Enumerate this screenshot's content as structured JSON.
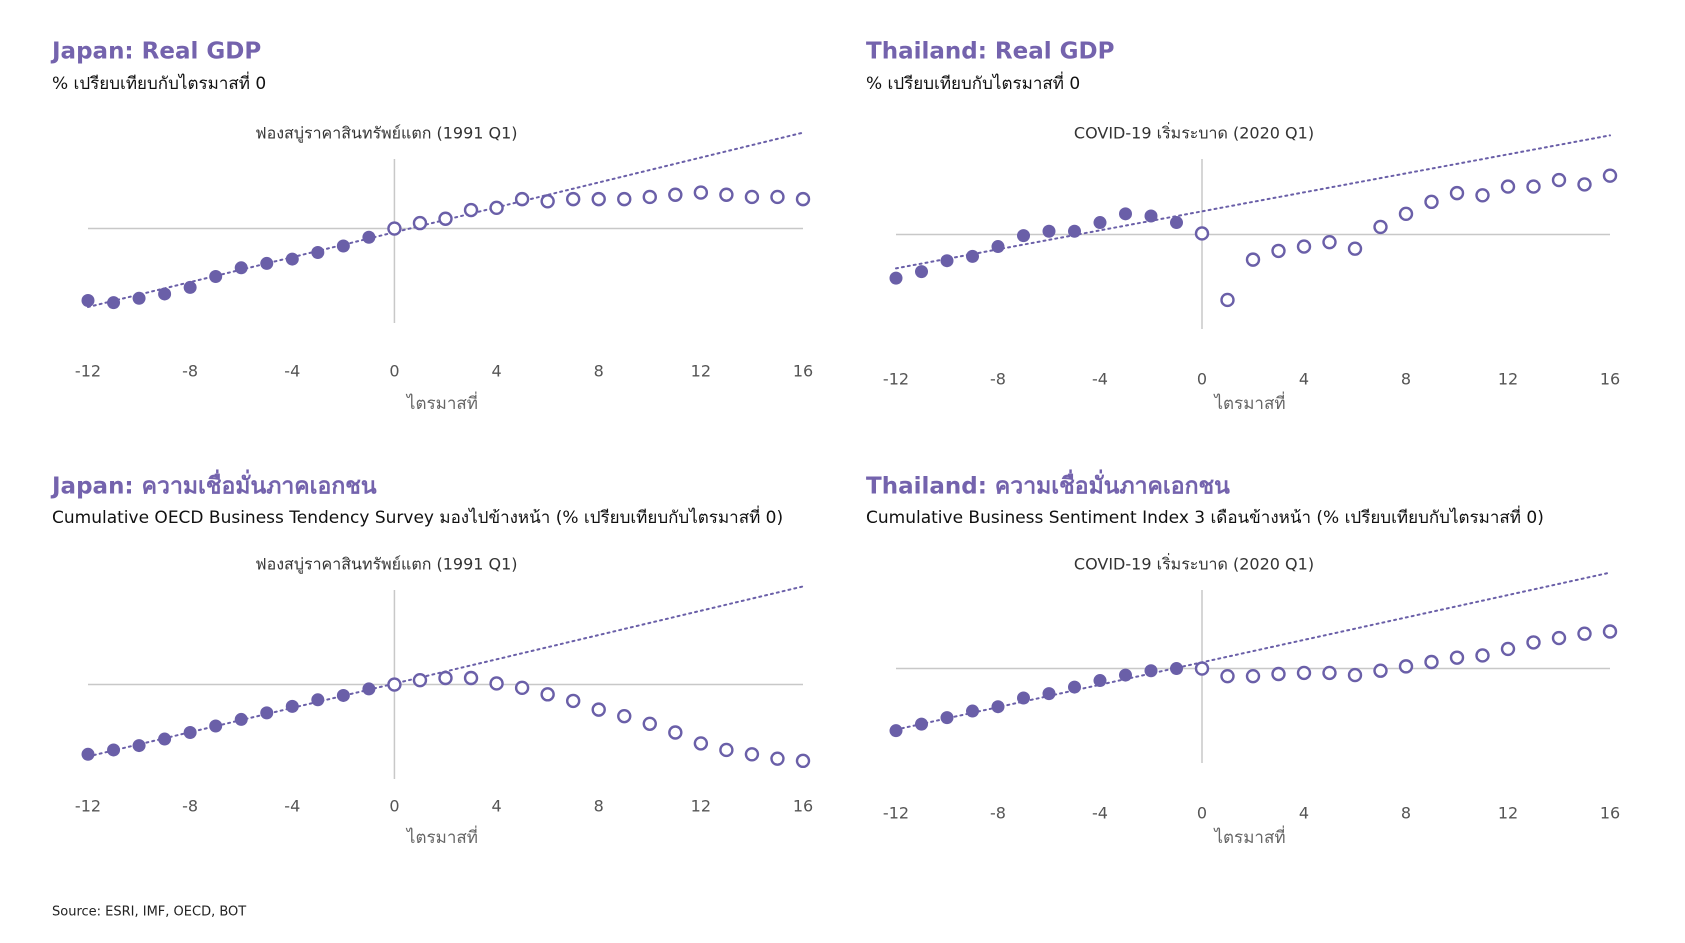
{
  "chart_data": [
    {
      "type": "scatter",
      "title": "Japan: Real GDP",
      "subtitle": "% เปรียบเทียบกับไตรมาสที่ 0",
      "annotation": "ฟองสบู่ราคาสินทรัพย์แตก (1991 Q1)",
      "x_label": "ไตรมาสที่",
      "xlim": [
        -12,
        16
      ],
      "xticks": [
        -12,
        -8,
        -4,
        0,
        4,
        8,
        12,
        16
      ],
      "ylim": [
        -10.5,
        9.5
      ],
      "series": [
        {
          "marker": "filled",
          "color": "#6a5fa8",
          "x": [
            -12,
            -11,
            -10,
            -9,
            -8,
            -7,
            -6,
            -5,
            -4,
            -3,
            -2,
            -1
          ],
          "values": [
            -6.6,
            -6.8,
            -6.4,
            -6.0,
            -5.4,
            -4.4,
            -3.6,
            -3.2,
            -2.8,
            -2.2,
            -1.6,
            -0.8
          ]
        },
        {
          "marker": "open",
          "color": "#6a5fa8",
          "x": [
            0,
            1,
            2,
            3,
            4,
            5,
            6,
            7,
            8,
            9,
            10,
            11,
            12,
            13,
            14,
            15,
            16
          ],
          "values": [
            0,
            0.5,
            0.9,
            1.7,
            1.9,
            2.7,
            2.5,
            2.7,
            2.7,
            2.7,
            2.9,
            3.1,
            3.3,
            3.1,
            2.9,
            2.9,
            2.7
          ]
        }
      ],
      "trend": {
        "color": "#6a5fa8",
        "x": [
          -12,
          16
        ],
        "values": [
          -7.2,
          8.8
        ]
      }
    },
    {
      "type": "scatter",
      "title": "Thailand: Real GDP",
      "subtitle": "% เปรียบเทียบกับไตรมาสที่ 0",
      "annotation": "COVID-19 เริ่มระบาด (2020 Q1)",
      "x_label": "ไตรมาสที่",
      "xlim": [
        -12,
        16
      ],
      "xticks": [
        -12,
        -8,
        -4,
        0,
        4,
        8,
        12,
        16
      ],
      "ylim": [
        -10.5,
        9.5
      ],
      "series": [
        {
          "marker": "filled",
          "color": "#6a5fa8",
          "x": [
            -12,
            -11,
            -10,
            -9,
            -8,
            -7,
            -6,
            -5,
            -4,
            -3,
            -2,
            -1
          ],
          "values": [
            -4.0,
            -3.4,
            -2.4,
            -2.0,
            -1.1,
            -0.1,
            0.3,
            0.3,
            1.1,
            1.9,
            1.7,
            1.1
          ]
        },
        {
          "marker": "open",
          "color": "#6a5fa8",
          "x": [
            0,
            1,
            2,
            3,
            4,
            5,
            6,
            7,
            8,
            9,
            10,
            11,
            12,
            13,
            14,
            15,
            16
          ],
          "values": [
            0.1,
            -6.0,
            -2.3,
            -1.5,
            -1.1,
            -0.7,
            -1.3,
            0.7,
            1.9,
            3.0,
            3.8,
            3.6,
            4.4,
            4.4,
            5.0,
            4.6,
            5.4
          ]
        }
      ],
      "trend": {
        "color": "#6a5fa8",
        "x": [
          -12,
          16
        ],
        "values": [
          -3.1,
          9.1
        ]
      }
    },
    {
      "type": "scatter",
      "title": "Japan: ความเชื่อมั่นภาคเอกชน",
      "subtitle": "Cumulative OECD Business Tendency Survey มองไปข้างหน้า (% เปรียบเทียบกับไตรมาสที่ 0)",
      "annotation": "ฟองสบู่ราคาสินทรัพย์แตก (1991 Q1)",
      "x_label": "ไตรมาสที่",
      "xlim": [
        -12,
        16
      ],
      "xticks": [
        -12,
        -8,
        -4,
        0,
        4,
        8,
        12,
        16
      ],
      "ylim": [
        -10.5,
        9.5
      ],
      "series": [
        {
          "marker": "filled",
          "color": "#6a5fa8",
          "x": [
            -12,
            -11,
            -10,
            -9,
            -8,
            -7,
            -6,
            -5,
            -4,
            -3,
            -2,
            -1
          ],
          "values": [
            -6.4,
            -6.0,
            -5.6,
            -5.0,
            -4.4,
            -3.8,
            -3.2,
            -2.6,
            -2.0,
            -1.4,
            -1.0,
            -0.4
          ]
        },
        {
          "marker": "open",
          "color": "#6a5fa8",
          "x": [
            0,
            1,
            2,
            3,
            4,
            5,
            6,
            7,
            8,
            9,
            10,
            11,
            12,
            13,
            14,
            15,
            16
          ],
          "values": [
            0,
            0.4,
            0.6,
            0.6,
            0.1,
            -0.3,
            -0.9,
            -1.5,
            -2.3,
            -2.9,
            -3.6,
            -4.4,
            -5.4,
            -6.0,
            -6.4,
            -6.8,
            -7.0
          ]
        }
      ],
      "trend": {
        "color": "#6a5fa8",
        "x": [
          -12,
          16
        ],
        "values": [
          -6.6,
          9.0
        ]
      }
    },
    {
      "type": "scatter",
      "title": "Thailand: ความเชื่อมั่นภาคเอกชน",
      "subtitle": "Cumulative Business Sentiment Index 3 เดือนข้างหน้า (% เปรียบเทียบกับไตรมาสที่ 0)",
      "annotation": "COVID-19 เริ่มระบาด (2020 Q1)",
      "x_label": "ไตรมาสที่",
      "xlim": [
        -12,
        16
      ],
      "xticks": [
        -12,
        -8,
        -4,
        0,
        4,
        8,
        12,
        16
      ],
      "ylim": [
        -10.5,
        9.5
      ],
      "series": [
        {
          "marker": "filled",
          "color": "#6a5fa8",
          "x": [
            -12,
            -11,
            -10,
            -9,
            -8,
            -7,
            -6,
            -5,
            -4,
            -3,
            -2,
            -1
          ],
          "values": [
            -5.7,
            -5.1,
            -4.5,
            -3.9,
            -3.5,
            -2.7,
            -2.3,
            -1.7,
            -1.1,
            -0.6,
            -0.2,
            0
          ]
        },
        {
          "marker": "open",
          "color": "#6a5fa8",
          "x": [
            0,
            1,
            2,
            3,
            4,
            5,
            6,
            7,
            8,
            9,
            10,
            11,
            12,
            13,
            14,
            15,
            16
          ],
          "values": [
            0,
            -0.7,
            -0.7,
            -0.5,
            -0.4,
            -0.4,
            -0.6,
            -0.2,
            0.2,
            0.6,
            1.0,
            1.2,
            1.8,
            2.4,
            2.8,
            3.2,
            3.4
          ]
        }
      ],
      "trend": {
        "color": "#6a5fa8",
        "x": [
          -12,
          16
        ],
        "values": [
          -5.6,
          8.8
        ]
      }
    }
  ],
  "source": "Source: ESRI, IMF, OECD, BOT"
}
